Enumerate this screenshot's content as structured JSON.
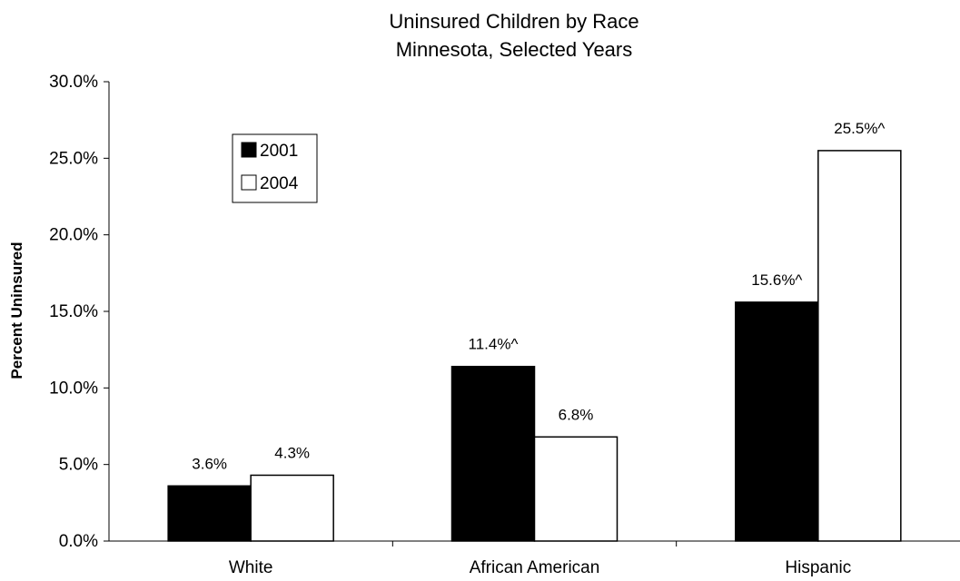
{
  "chart_data": {
    "type": "bar",
    "title": "Uninsured Children by Race",
    "subtitle": "Minnesota, Selected Years",
    "xlabel": "",
    "ylabel": "Percent Uninsured",
    "categories": [
      "White",
      "African American",
      "Hispanic"
    ],
    "series": [
      {
        "name": "2001",
        "color": "#000000",
        "values": [
          3.6,
          11.4,
          15.6
        ],
        "labels": [
          "3.6%",
          "11.4%^",
          "15.6%^"
        ]
      },
      {
        "name": "2004",
        "color": "#ffffff",
        "values": [
          4.3,
          6.8,
          25.5
        ],
        "labels": [
          "4.3%",
          "6.8%",
          "25.5%^"
        ]
      }
    ],
    "ylim": [
      0,
      30
    ],
    "yticks": [
      0,
      5,
      10,
      15,
      20,
      25,
      30
    ],
    "ytick_labels": [
      "0.0%",
      "5.0%",
      "10.0%",
      "15.0%",
      "20.0%",
      "25.0%",
      "30.0%"
    ],
    "grid": false,
    "legend_position": "top-left"
  }
}
